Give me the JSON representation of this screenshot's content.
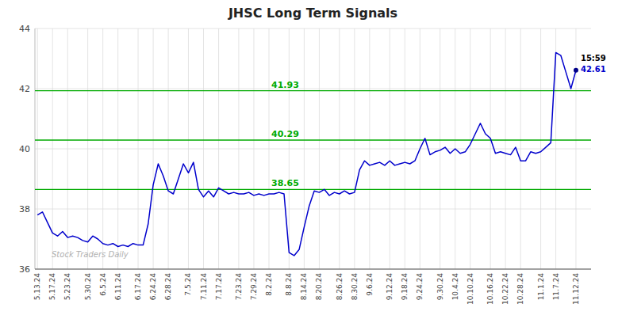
{
  "chart_data": {
    "type": "line",
    "title": "JHSC Long Term Signals",
    "categories": [
      "5.13.24",
      null,
      null,
      "5.17.24",
      null,
      null,
      "5.23.24",
      null,
      null,
      null,
      "5.30.24",
      null,
      null,
      "6.5.24",
      null,
      null,
      "6.11.24",
      null,
      null,
      null,
      "6.17.24",
      null,
      null,
      "6.24.24",
      null,
      null,
      "6.28.24",
      null,
      null,
      null,
      "7.5.24",
      null,
      null,
      "7.11.24",
      null,
      null,
      "7.17.24",
      null,
      null,
      null,
      "7.23.24",
      null,
      null,
      "7.29.24",
      null,
      null,
      "8.2.24",
      null,
      null,
      null,
      "8.8.24",
      null,
      null,
      "8.14.24",
      null,
      null,
      "8.20.24",
      null,
      null,
      null,
      "8.26.24",
      null,
      null,
      "8.30.24",
      null,
      null,
      "9.6.24",
      null,
      null,
      null,
      "9.12.24",
      null,
      null,
      "9.18.24",
      null,
      null,
      "9.24.24",
      null,
      null,
      null,
      "9.30.24",
      null,
      null,
      "10.4.24",
      null,
      null,
      "10.10.24",
      null,
      null,
      null,
      "10.16.24",
      null,
      null,
      "10.22.24",
      null,
      null,
      "10.28.24",
      null,
      null,
      null,
      "11.1.24",
      null,
      null,
      "11.7.24",
      null,
      null,
      null,
      "11.12.24"
    ],
    "values": [
      37.8,
      37.9,
      37.55,
      37.2,
      37.1,
      37.25,
      37.05,
      37.1,
      37.05,
      36.95,
      36.9,
      37.1,
      37.0,
      36.85,
      36.8,
      36.85,
      36.75,
      36.8,
      36.75,
      36.85,
      36.8,
      36.8,
      37.5,
      38.8,
      39.5,
      39.1,
      38.6,
      38.5,
      39.0,
      39.5,
      39.2,
      39.55,
      38.65,
      38.4,
      38.6,
      38.4,
      38.7,
      38.6,
      38.5,
      38.55,
      38.5,
      38.5,
      38.55,
      38.45,
      38.5,
      38.45,
      38.5,
      38.5,
      38.55,
      38.5,
      36.55,
      36.45,
      36.65,
      37.4,
      38.1,
      38.6,
      38.55,
      38.65,
      38.45,
      38.55,
      38.5,
      38.6,
      38.5,
      38.55,
      39.3,
      39.6,
      39.45,
      39.5,
      39.55,
      39.45,
      39.6,
      39.45,
      39.5,
      39.55,
      39.5,
      39.6,
      40.0,
      40.35,
      39.8,
      39.9,
      39.95,
      40.05,
      39.85,
      40.0,
      39.85,
      39.9,
      40.15,
      40.5,
      40.85,
      40.5,
      40.35,
      39.85,
      39.9,
      39.85,
      39.8,
      40.05,
      39.6,
      39.6,
      39.9,
      39.85,
      39.9,
      40.05,
      40.2,
      43.2,
      43.1,
      42.55,
      42.0,
      42.61
    ],
    "color": "#0000cc",
    "ylim": [
      36,
      44
    ],
    "yticks": [
      36,
      38,
      40,
      42,
      44
    ],
    "grid": true,
    "hlines": [
      {
        "value": 38.65,
        "color": "#00aa00"
      },
      {
        "value": 40.29,
        "color": "#00aa00"
      },
      {
        "value": 41.93,
        "color": "#00aa00"
      }
    ],
    "last_point": {
      "label": "15:59",
      "value": 42.61
    },
    "watermark": "Stock Traders Daily"
  }
}
